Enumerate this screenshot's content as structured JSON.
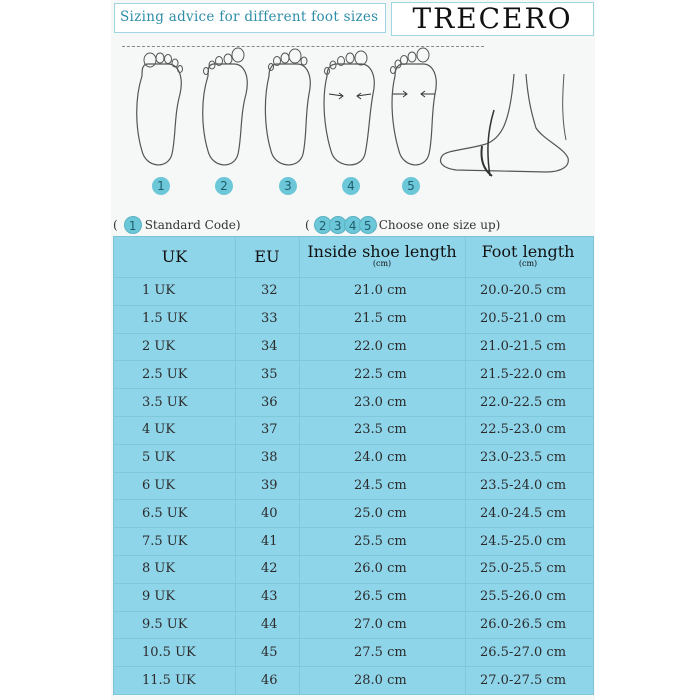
{
  "header": {
    "title": "Sizing advice for different foot sizes",
    "brand": "TRECERO"
  },
  "feet": [
    {
      "number": "1"
    },
    {
      "number": "2"
    },
    {
      "number": "3"
    },
    {
      "number": "4"
    },
    {
      "number": "5"
    }
  ],
  "legend": {
    "standard_number": "1",
    "standard_label": "Standard Code)",
    "open_paren": "(",
    "size_up_numbers": [
      "2",
      "3",
      "4",
      "5"
    ],
    "size_up_label": "Choose one size up)"
  },
  "table": {
    "headers": {
      "uk": "UK",
      "eu": "EU",
      "inside": "Inside shoe length",
      "inside_unit": "(cm)",
      "foot": "Foot length",
      "foot_unit": "(cm)"
    },
    "rows": [
      {
        "uk": "1 UK",
        "eu": "32",
        "inside": "21.0 cm",
        "foot": "20.0-20.5 cm"
      },
      {
        "uk": "1.5 UK",
        "eu": "33",
        "inside": "21.5 cm",
        "foot": "20.5-21.0 cm"
      },
      {
        "uk": "2 UK",
        "eu": "34",
        "inside": "22.0 cm",
        "foot": "21.0-21.5 cm"
      },
      {
        "uk": "2.5 UK",
        "eu": "35",
        "inside": "22.5 cm",
        "foot": "21.5-22.0 cm"
      },
      {
        "uk": "3.5 UK",
        "eu": "36",
        "inside": "23.0 cm",
        "foot": "22.0-22.5 cm"
      },
      {
        "uk": "4 UK",
        "eu": "37",
        "inside": "23.5 cm",
        "foot": "22.5-23.0 cm"
      },
      {
        "uk": "5 UK",
        "eu": "38",
        "inside": "24.0 cm",
        "foot": "23.0-23.5 cm"
      },
      {
        "uk": "6 UK",
        "eu": "39",
        "inside": "24.5 cm",
        "foot": "23.5-24.0 cm"
      },
      {
        "uk": "6.5 UK",
        "eu": "40",
        "inside": "25.0 cm",
        "foot": "24.0-24.5 cm"
      },
      {
        "uk": "7.5 UK",
        "eu": "41",
        "inside": "25.5 cm",
        "foot": "24.5-25.0 cm"
      },
      {
        "uk": "8 UK",
        "eu": "42",
        "inside": "26.0 cm",
        "foot": "25.0-25.5 cm"
      },
      {
        "uk": "9 UK",
        "eu": "43",
        "inside": "26.5 cm",
        "foot": "25.5-26.0 cm"
      },
      {
        "uk": "9.5 UK",
        "eu": "44",
        "inside": "27.0 cm",
        "foot": "26.0-26.5 cm"
      },
      {
        "uk": "10.5 UK",
        "eu": "45",
        "inside": "27.5 cm",
        "foot": "26.5-27.0 cm"
      },
      {
        "uk": "11.5 UK",
        "eu": "46",
        "inside": "28.0 cm",
        "foot": "27.0-27.5 cm"
      }
    ]
  },
  "colors": {
    "accent": "#6cc7d9",
    "table_bg": "#8fd5ea",
    "header_text": "#2e8ea8"
  }
}
